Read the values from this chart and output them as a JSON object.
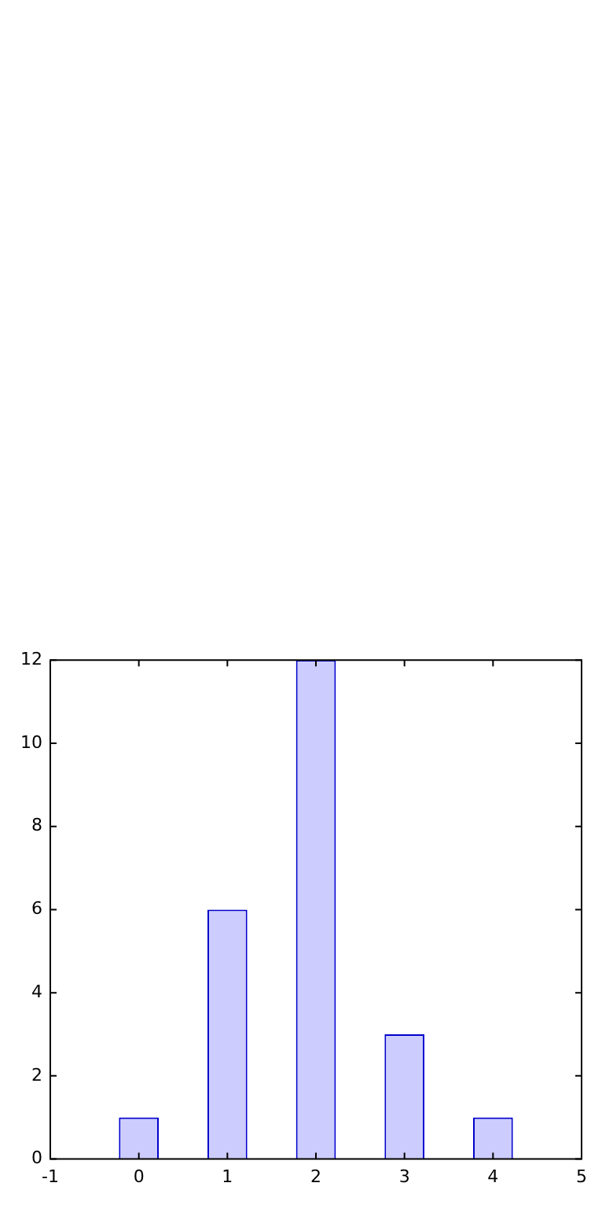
{
  "chart_data": {
    "type": "bar",
    "x": [
      0,
      1,
      2,
      3,
      4
    ],
    "values": [
      1,
      6,
      12,
      3,
      1
    ],
    "color": "#ccccff",
    "xlim": [
      -1,
      5
    ],
    "xticks": [
      -1,
      0,
      1,
      2,
      3,
      4,
      5
    ],
    "ylim": [
      0,
      12
    ],
    "yticks": [
      0,
      2,
      4,
      6,
      8,
      10,
      12
    ],
    "grid": false,
    "legend": false
  }
}
